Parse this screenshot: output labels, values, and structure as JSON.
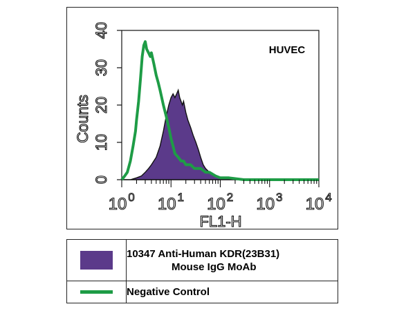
{
  "chart_data": {
    "type": "area",
    "annotation": "HUVEC",
    "xlabel": "FL1-H",
    "ylabel": "Counts",
    "xscale": "log",
    "xlim": [
      1,
      10000
    ],
    "ylim": [
      0,
      40
    ],
    "xticks": [
      {
        "base": "10",
        "exp": "0",
        "value": 1
      },
      {
        "base": "10",
        "exp": "1",
        "value": 10
      },
      {
        "base": "10",
        "exp": "2",
        "value": 100
      },
      {
        "base": "10",
        "exp": "3",
        "value": 1000
      },
      {
        "base": "10",
        "exp": "4",
        "value": 10000
      }
    ],
    "yticks": [
      "0",
      "10",
      "20",
      "30",
      "40"
    ],
    "grid": false,
    "series": [
      {
        "name": "10347 Anti-Human KDR(23B31) Mouse IgG MoAb",
        "style": "filled",
        "color": "#5b3a8a",
        "x": [
          1.0,
          1.5,
          2.0,
          2.5,
          3.0,
          3.5,
          4.0,
          5.0,
          6.0,
          7.0,
          8.0,
          9.0,
          10.0,
          11.0,
          12.0,
          13.0,
          14.0,
          15.0,
          16.0,
          17.0,
          18.0,
          20.0,
          22.0,
          25.0,
          28.0,
          32.0,
          36.0,
          40.0,
          45.0,
          50.0,
          60.0,
          70.0,
          80.0,
          100.0,
          130.0,
          170.0,
          250.0,
          10000.0
        ],
        "y": [
          0,
          0,
          0.5,
          1,
          2,
          3,
          4,
          6,
          9,
          13,
          17,
          20,
          22,
          23,
          22,
          23,
          24,
          22,
          21,
          20,
          21,
          18,
          16,
          14,
          12,
          10,
          8,
          6,
          4,
          3,
          2,
          1.5,
          1,
          0.5,
          0.5,
          0.5,
          0,
          0
        ]
      },
      {
        "name": "Negative Control",
        "style": "line",
        "color": "#1e9c46",
        "x": [
          1.0,
          1.15,
          1.3,
          1.5,
          1.7,
          1.9,
          2.0,
          2.2,
          2.4,
          2.6,
          2.8,
          3.0,
          3.2,
          3.5,
          3.8,
          4.0,
          4.5,
          5.0,
          5.5,
          6.0,
          7.0,
          8.0,
          9.0,
          10.0,
          11.0,
          12.0,
          14.0,
          16.0,
          18.0,
          20.0,
          25.0,
          30.0,
          35.0,
          40.0,
          50.0,
          60.0,
          80.0,
          100.0,
          150.0,
          300.0,
          10000.0
        ],
        "y": [
          0,
          1,
          2,
          5,
          9,
          13,
          16,
          21,
          27,
          33,
          36,
          37,
          35,
          34,
          33,
          34,
          31,
          28,
          26,
          24,
          20,
          17,
          14,
          11,
          9,
          7,
          6,
          5,
          5,
          4,
          4,
          3,
          3,
          3,
          2,
          2,
          1,
          0.5,
          0.5,
          0,
          0
        ]
      }
    ]
  },
  "legend": [
    {
      "line1": "10347   Anti-Human KDR(23B31)",
      "line2": "Mouse IgG MoAb",
      "swatch_color": "#5b3a8a"
    },
    {
      "line1": "Negative   Control",
      "swatch_color": "#1e9c46"
    }
  ]
}
